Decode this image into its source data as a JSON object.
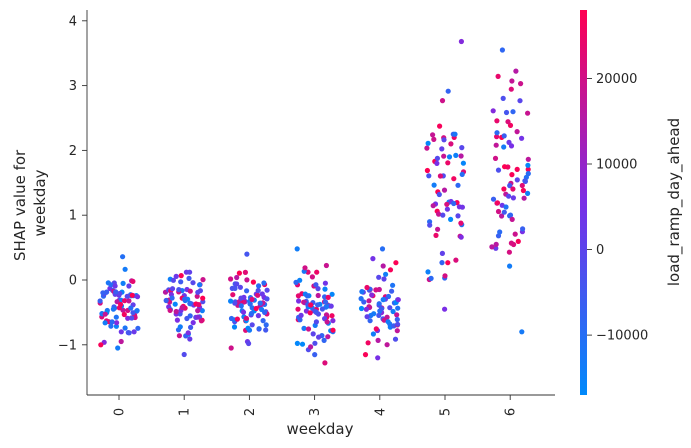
{
  "chart_data": {
    "type": "scatter",
    "xlabel": "weekday",
    "ylabel": "SHAP value for\nweekday",
    "x_categories": [
      "0",
      "1",
      "2",
      "3",
      "4",
      "5",
      "6"
    ],
    "y_ticks": [
      -1,
      0,
      1,
      2,
      3,
      4
    ],
    "y_tick_labels": [
      "−1",
      "0",
      "1",
      "2",
      "3",
      "4"
    ],
    "ylim": [
      -1.75,
      4.2
    ],
    "grid": false,
    "colorbar": {
      "label": "load_ramp_day_ahead",
      "range": [
        -17000,
        28000
      ],
      "ticks": [
        -10000,
        0,
        10000,
        20000
      ],
      "tick_labels": [
        "−10000",
        "0",
        "10000",
        "20000"
      ],
      "color_low": "#008afb",
      "color_mid": "#7a2ee6",
      "color_high": "#ff0052"
    },
    "series": [
      {
        "category": 0,
        "count": 80,
        "center": -0.4,
        "spread": 0.25,
        "min": -1.05,
        "max": 0.36,
        "high_feature_share": 0.3
      },
      {
        "category": 1,
        "count": 75,
        "center": -0.4,
        "spread": 0.25,
        "min": -1.15,
        "max": 0.12,
        "high_feature_share": 0.3
      },
      {
        "category": 2,
        "count": 80,
        "center": -0.4,
        "spread": 0.28,
        "min": -1.05,
        "max": 0.4,
        "high_feature_share": 0.3
      },
      {
        "category": 3,
        "count": 80,
        "center": -0.45,
        "spread": 0.3,
        "min": -1.28,
        "max": 0.48,
        "high_feature_share": 0.3
      },
      {
        "category": 4,
        "count": 70,
        "center": -0.45,
        "spread": 0.3,
        "min": -1.2,
        "max": 0.48,
        "high_feature_share": 0.3
      },
      {
        "category": 5,
        "count": 70,
        "center": 1.55,
        "spread": 0.7,
        "min": -0.45,
        "max": 3.68,
        "high_feature_share": 0.4
      },
      {
        "category": 6,
        "count": 75,
        "center": 1.7,
        "spread": 0.75,
        "min": -0.8,
        "max": 3.55,
        "high_feature_share": 0.4
      }
    ]
  }
}
